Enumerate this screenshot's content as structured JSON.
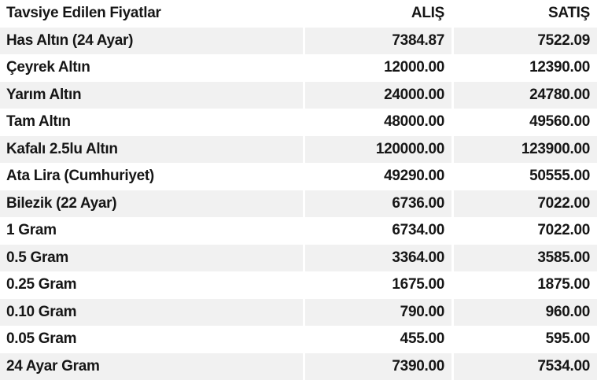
{
  "colors": {
    "stripe": "#f1f1f1",
    "text": "#161616",
    "background": "#ffffff"
  },
  "chart_data": {
    "type": "table",
    "title": "Tavsiye Edilen Fiyatlar",
    "columns": [
      "Tavsiye Edilen Fiyatlar",
      "ALIŞ",
      "SATIŞ"
    ],
    "rows": [
      {
        "name": "Has Altın (24 Ayar)",
        "alis": "7384.87",
        "satis": "7522.09"
      },
      {
        "name": "Çeyrek Altın",
        "alis": "12000.00",
        "satis": "12390.00"
      },
      {
        "name": "Yarım Altın",
        "alis": "24000.00",
        "satis": "24780.00"
      },
      {
        "name": "Tam Altın",
        "alis": "48000.00",
        "satis": "49560.00"
      },
      {
        "name": "Kafalı 2.5lu Altın",
        "alis": "120000.00",
        "satis": "123900.00"
      },
      {
        "name": "Ata Lira (Cumhuriyet)",
        "alis": "49290.00",
        "satis": "50555.00"
      },
      {
        "name": "Bilezik (22 Ayar)",
        "alis": "6736.00",
        "satis": "7022.00"
      },
      {
        "name": "1 Gram",
        "alis": "6734.00",
        "satis": "7022.00"
      },
      {
        "name": "0.5 Gram",
        "alis": "3364.00",
        "satis": "3585.00"
      },
      {
        "name": "0.25 Gram",
        "alis": "1675.00",
        "satis": "1875.00"
      },
      {
        "name": "0.10 Gram",
        "alis": "790.00",
        "satis": "960.00"
      },
      {
        "name": "0.05 Gram",
        "alis": "455.00",
        "satis": "595.00"
      },
      {
        "name": "24 Ayar Gram",
        "alis": "7390.00",
        "satis": "7534.00"
      }
    ]
  }
}
